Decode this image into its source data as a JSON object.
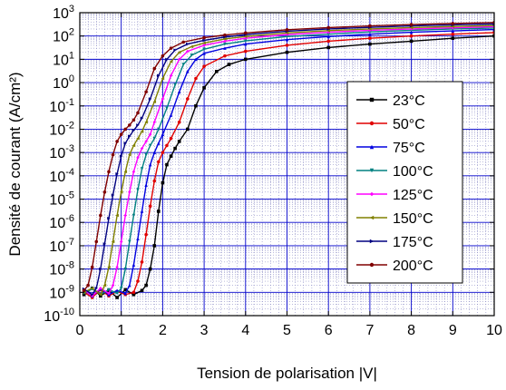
{
  "chart_data": {
    "type": "line",
    "title": "",
    "xlabel": "Tension de polarisation |V|",
    "ylabel": "Densité de courant (A/cm²)",
    "xlim": [
      0,
      10
    ],
    "ylim_log10": [
      -10,
      3
    ],
    "yscale": "log",
    "grid": true,
    "grid_color": "#0000cc",
    "legend_position": "center-right",
    "x_tick_labels": [
      "0",
      "1",
      "2",
      "3",
      "4",
      "5",
      "6",
      "7",
      "8",
      "9",
      "10"
    ],
    "y_tick_exponents": [
      "-10",
      "-9",
      "-8",
      "-7",
      "-6",
      "-5",
      "-4",
      "-3",
      "-2",
      "-1",
      "0",
      "1",
      "2",
      "3"
    ],
    "y_tick_base": "10",
    "series": [
      {
        "name": "23°C",
        "color": "#000000",
        "marker": "square",
        "points": [
          [
            0.1,
            8e-10
          ],
          [
            0.3,
            1.5e-09
          ],
          [
            0.5,
            7e-10
          ],
          [
            0.7,
            1.2e-09
          ],
          [
            0.9,
            6e-10
          ],
          [
            1.1,
            1.3e-09
          ],
          [
            1.3,
            8e-10
          ],
          [
            1.5,
            1.2e-09
          ],
          [
            1.6,
            2e-09
          ],
          [
            1.7,
            1e-08
          ],
          [
            1.8,
            1e-07
          ],
          [
            1.9,
            3e-06
          ],
          [
            2.0,
            5e-05
          ],
          [
            2.1,
            0.0003
          ],
          [
            2.2,
            0.0007
          ],
          [
            2.3,
            0.0015
          ],
          [
            2.4,
            0.003
          ],
          [
            2.6,
            0.01
          ],
          [
            2.8,
            0.1
          ],
          [
            3.0,
            0.6
          ],
          [
            3.3,
            3
          ],
          [
            3.6,
            6
          ],
          [
            4,
            10
          ],
          [
            5,
            20
          ],
          [
            6,
            32
          ],
          [
            7,
            45
          ],
          [
            8,
            60
          ],
          [
            9,
            80
          ],
          [
            10,
            100
          ]
        ]
      },
      {
        "name": "50°C",
        "color": "#e00000",
        "marker": "circle",
        "points": [
          [
            0.1,
            1e-09
          ],
          [
            0.3,
            6e-10
          ],
          [
            0.5,
            1.3e-09
          ],
          [
            0.7,
            7e-10
          ],
          [
            0.9,
            1.1e-09
          ],
          [
            1.1,
            8e-10
          ],
          [
            1.3,
            1e-09
          ],
          [
            1.4,
            3e-09
          ],
          [
            1.5,
            2e-08
          ],
          [
            1.6,
            3e-07
          ],
          [
            1.7,
            5e-06
          ],
          [
            1.8,
            6e-05
          ],
          [
            1.9,
            0.0004
          ],
          [
            2.0,
            0.001
          ],
          [
            2.1,
            0.002
          ],
          [
            2.2,
            0.004
          ],
          [
            2.4,
            0.02
          ],
          [
            2.6,
            0.2
          ],
          [
            2.8,
            1.5
          ],
          [
            3.0,
            5
          ],
          [
            3.5,
            14
          ],
          [
            4,
            22
          ],
          [
            5,
            40
          ],
          [
            6,
            60
          ],
          [
            7,
            80
          ],
          [
            8,
            100
          ],
          [
            9,
            120
          ],
          [
            10,
            140
          ]
        ]
      },
      {
        "name": "75°C",
        "color": "#0000e0",
        "marker": "triangle",
        "points": [
          [
            0.1,
            1.2e-09
          ],
          [
            0.3,
            7e-10
          ],
          [
            0.5,
            1.4e-09
          ],
          [
            0.7,
            8e-10
          ],
          [
            0.9,
            1.2e-09
          ],
          [
            1.1,
            9e-10
          ],
          [
            1.2,
            2e-09
          ],
          [
            1.3,
            1.5e-08
          ],
          [
            1.4,
            2e-07
          ],
          [
            1.5,
            3e-06
          ],
          [
            1.6,
            4e-05
          ],
          [
            1.7,
            0.0003
          ],
          [
            1.8,
            0.001
          ],
          [
            1.9,
            0.0025
          ],
          [
            2.0,
            0.006
          ],
          [
            2.2,
            0.04
          ],
          [
            2.4,
            0.4
          ],
          [
            2.6,
            3
          ],
          [
            2.8,
            10
          ],
          [
            3.0,
            18
          ],
          [
            3.5,
            30
          ],
          [
            4,
            45
          ],
          [
            5,
            70
          ],
          [
            6,
            95
          ],
          [
            7,
            120
          ],
          [
            8,
            145
          ],
          [
            9,
            165
          ],
          [
            10,
            190
          ]
        ]
      },
      {
        "name": "100°C",
        "color": "#008080",
        "marker": "triangle-down",
        "points": [
          [
            0.1,
            9e-10
          ],
          [
            0.3,
            1.4e-09
          ],
          [
            0.5,
            8e-10
          ],
          [
            0.7,
            1.3e-09
          ],
          [
            0.9,
            9e-10
          ],
          [
            1.0,
            1.5e-09
          ],
          [
            1.1,
            1e-08
          ],
          [
            1.2,
            1.5e-07
          ],
          [
            1.3,
            2e-06
          ],
          [
            1.4,
            2.5e-05
          ],
          [
            1.5,
            0.0002
          ],
          [
            1.6,
            0.0008
          ],
          [
            1.7,
            0.002
          ],
          [
            1.8,
            0.004
          ],
          [
            1.9,
            0.01
          ],
          [
            2.1,
            0.08
          ],
          [
            2.3,
            0.8
          ],
          [
            2.5,
            6
          ],
          [
            2.7,
            15
          ],
          [
            3.0,
            27
          ],
          [
            3.5,
            45
          ],
          [
            4,
            62
          ],
          [
            5,
            95
          ],
          [
            6,
            120
          ],
          [
            7,
            150
          ],
          [
            8,
            175
          ],
          [
            9,
            200
          ],
          [
            10,
            220
          ]
        ]
      },
      {
        "name": "125°C",
        "color": "#ff00ff",
        "marker": "diamond",
        "points": [
          [
            0.1,
            1.3e-09
          ],
          [
            0.3,
            7e-10
          ],
          [
            0.5,
            1.5e-09
          ],
          [
            0.7,
            9e-10
          ],
          [
            0.8,
            2e-09
          ],
          [
            0.9,
            1.2e-08
          ],
          [
            1.0,
            1.5e-07
          ],
          [
            1.1,
            2e-06
          ],
          [
            1.2,
            2e-05
          ],
          [
            1.3,
            0.00015
          ],
          [
            1.4,
            0.0006
          ],
          [
            1.5,
            0.0015
          ],
          [
            1.6,
            0.003
          ],
          [
            1.7,
            0.006
          ],
          [
            1.8,
            0.02
          ],
          [
            2.0,
            0.2
          ],
          [
            2.2,
            2
          ],
          [
            2.4,
            10
          ],
          [
            2.6,
            22
          ],
          [
            3.0,
            40
          ],
          [
            3.5,
            60
          ],
          [
            4,
            80
          ],
          [
            5,
            115
          ],
          [
            6,
            145
          ],
          [
            7,
            175
          ],
          [
            8,
            200
          ],
          [
            9,
            225
          ],
          [
            10,
            250
          ]
        ]
      },
      {
        "name": "150°C",
        "color": "#808000",
        "marker": "triangle-left",
        "points": [
          [
            0.1,
            1e-09
          ],
          [
            0.3,
            1.5e-09
          ],
          [
            0.5,
            8e-10
          ],
          [
            0.6,
            2e-09
          ],
          [
            0.7,
            1.2e-08
          ],
          [
            0.8,
            1.5e-07
          ],
          [
            0.9,
            2e-06
          ],
          [
            1.0,
            2e-05
          ],
          [
            1.1,
            0.00015
          ],
          [
            1.2,
            0.0008
          ],
          [
            1.3,
            0.002
          ],
          [
            1.4,
            0.004
          ],
          [
            1.5,
            0.008
          ],
          [
            1.6,
            0.02
          ],
          [
            1.8,
            0.15
          ],
          [
            2.0,
            1.5
          ],
          [
            2.2,
            8
          ],
          [
            2.4,
            20
          ],
          [
            2.7,
            35
          ],
          [
            3.0,
            50
          ],
          [
            3.5,
            75
          ],
          [
            4,
            95
          ],
          [
            5,
            135
          ],
          [
            6,
            170
          ],
          [
            7,
            200
          ],
          [
            8,
            230
          ],
          [
            9,
            255
          ],
          [
            10,
            280
          ]
        ]
      },
      {
        "name": "175°C",
        "color": "#000080",
        "marker": "triangle-right",
        "points": [
          [
            0.1,
            1.4e-09
          ],
          [
            0.3,
            8e-10
          ],
          [
            0.4,
            1.5e-09
          ],
          [
            0.5,
            1e-08
          ],
          [
            0.6,
            1.2e-07
          ],
          [
            0.7,
            1.5e-06
          ],
          [
            0.8,
            1.5e-05
          ],
          [
            0.9,
            0.00012
          ],
          [
            1.0,
            0.0007
          ],
          [
            1.1,
            0.0025
          ],
          [
            1.2,
            0.005
          ],
          [
            1.3,
            0.009
          ],
          [
            1.4,
            0.015
          ],
          [
            1.5,
            0.03
          ],
          [
            1.7,
            0.2
          ],
          [
            1.9,
            2
          ],
          [
            2.1,
            10
          ],
          [
            2.3,
            25
          ],
          [
            2.6,
            45
          ],
          [
            3.0,
            65
          ],
          [
            3.5,
            90
          ],
          [
            4,
            115
          ],
          [
            5,
            160
          ],
          [
            6,
            200
          ],
          [
            7,
            235
          ],
          [
            8,
            270
          ],
          [
            9,
            300
          ],
          [
            10,
            330
          ]
        ]
      },
      {
        "name": "200°C",
        "color": "#800000",
        "marker": "hexagon",
        "points": [
          [
            0.1,
            1.2e-09
          ],
          [
            0.2,
            2e-09
          ],
          [
            0.3,
            1.2e-08
          ],
          [
            0.4,
            1.5e-07
          ],
          [
            0.5,
            2e-06
          ],
          [
            0.6,
            2e-05
          ],
          [
            0.7,
            0.00015
          ],
          [
            0.8,
            0.0008
          ],
          [
            0.9,
            0.003
          ],
          [
            1.0,
            0.006
          ],
          [
            1.1,
            0.01
          ],
          [
            1.2,
            0.015
          ],
          [
            1.3,
            0.025
          ],
          [
            1.4,
            0.05
          ],
          [
            1.6,
            0.4
          ],
          [
            1.8,
            4
          ],
          [
            2.0,
            14
          ],
          [
            2.2,
            30
          ],
          [
            2.5,
            55
          ],
          [
            3.0,
            85
          ],
          [
            3.5,
            110
          ],
          [
            4,
            135
          ],
          [
            5,
            185
          ],
          [
            6,
            230
          ],
          [
            7,
            270
          ],
          [
            8,
            310
          ],
          [
            9,
            345
          ],
          [
            10,
            380
          ]
        ]
      }
    ]
  }
}
